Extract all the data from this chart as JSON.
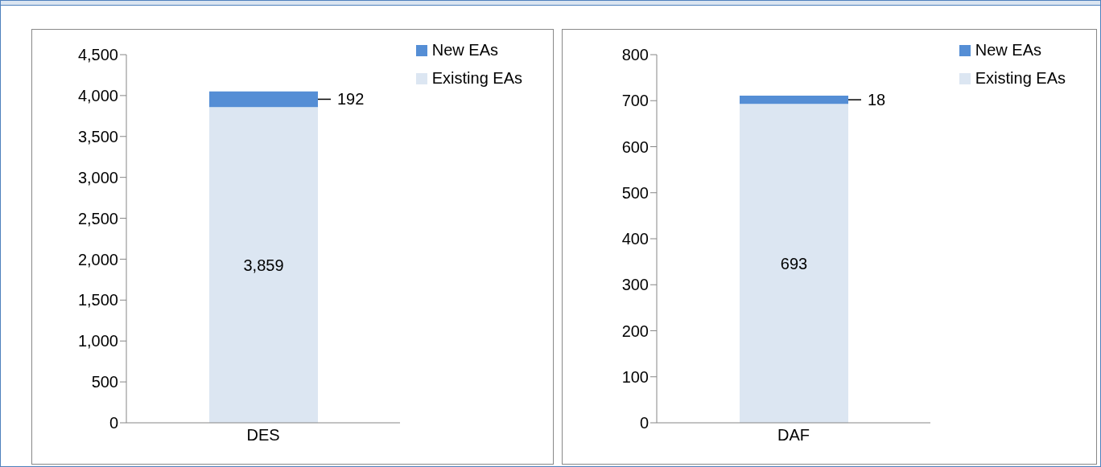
{
  "chart_data": [
    {
      "type": "bar",
      "stacked": true,
      "categories": [
        "DES"
      ],
      "series": [
        {
          "name": "Existing EAs",
          "color": "#dce6f2",
          "values": [
            3859
          ],
          "value_labels": [
            "3,859"
          ]
        },
        {
          "name": "New EAs",
          "color": "#558ed5",
          "values": [
            192
          ],
          "value_labels": [
            "192"
          ]
        }
      ],
      "ylim": [
        0,
        4500
      ],
      "yticks": [
        0,
        {
          "value": 500,
          "label": "500"
        },
        {
          "value": 1000,
          "label": "1,000"
        },
        {
          "value": 1500,
          "label": "1,500"
        },
        {
          "value": 2000,
          "label": "2,000"
        },
        {
          "value": 2500,
          "label": "2,500"
        },
        {
          "value": 3000,
          "label": "3,000"
        },
        {
          "value": 3500,
          "label": "3,500"
        },
        {
          "value": 4000,
          "label": "4,000"
        },
        {
          "value": 4500,
          "label": "4,500"
        }
      ],
      "grid": false,
      "legend": "top right"
    },
    {
      "type": "bar",
      "stacked": true,
      "categories": [
        "DAF"
      ],
      "series": [
        {
          "name": "Existing EAs",
          "color": "#dce6f2",
          "values": [
            693
          ],
          "value_labels": [
            "693"
          ]
        },
        {
          "name": "New EAs",
          "color": "#558ed5",
          "values": [
            18
          ],
          "value_labels": [
            "18"
          ]
        }
      ],
      "ylim": [
        0,
        800
      ],
      "yticks": [
        0,
        100,
        200,
        300,
        400,
        500,
        600,
        700,
        800
      ],
      "grid": false,
      "legend": "top right"
    }
  ]
}
